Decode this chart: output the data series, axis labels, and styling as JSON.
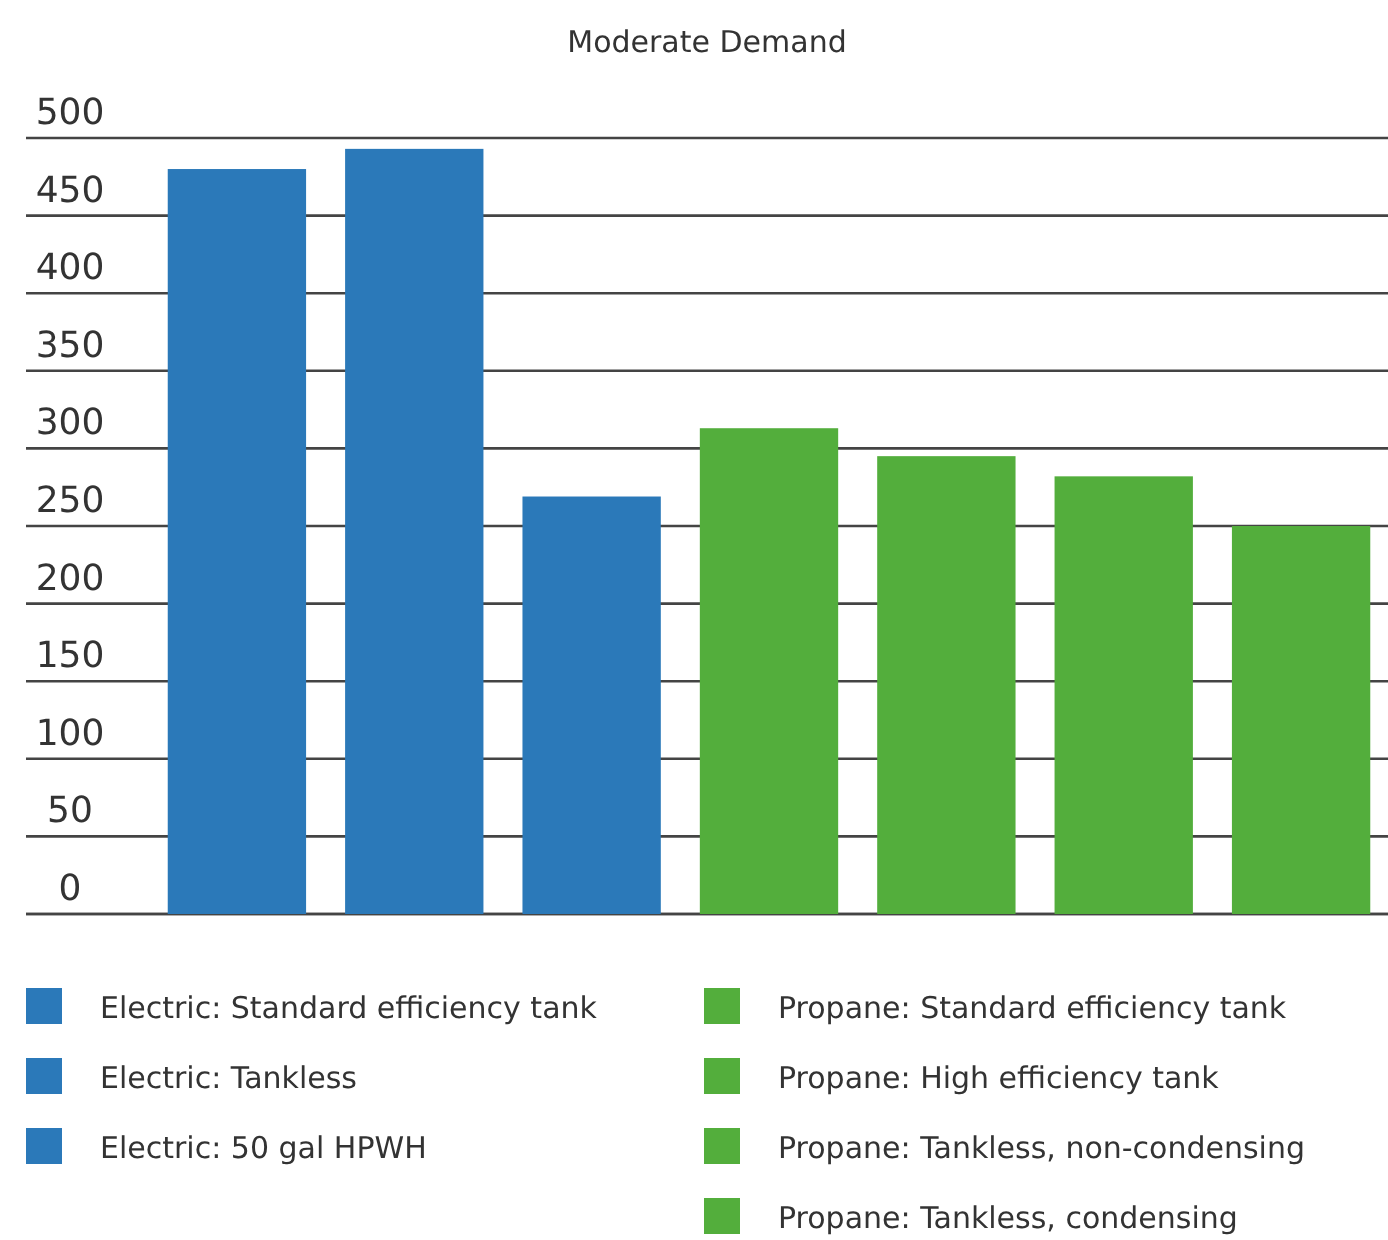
{
  "chart_data": {
    "type": "bar",
    "title": "Moderate Demand",
    "categories": [
      null,
      null,
      null,
      null,
      null,
      null,
      null
    ],
    "stacked": true,
    "series": [
      {
        "name": "Electric: Standard efficiency tank",
        "color": "#2b79b9",
        "values": [
          480,
          null,
          null,
          null,
          null,
          null,
          null
        ]
      },
      {
        "name": "Electric: Tankless",
        "color": "#2b79b9",
        "values": [
          null,
          493,
          null,
          null,
          null,
          null,
          null
        ]
      },
      {
        "name": "Electric: 50 gal HPWH",
        "color": "#2b79b9",
        "values": [
          null,
          null,
          269,
          null,
          null,
          null,
          null
        ]
      },
      {
        "name": "Propane: Standard efficiency tank",
        "color": "#53ae3c",
        "values": [
          null,
          null,
          null,
          313,
          null,
          null,
          null
        ]
      },
      {
        "name": "Propane: High efficiency tank",
        "color": "#53ae3c",
        "values": [
          null,
          null,
          null,
          null,
          295,
          null,
          null
        ]
      },
      {
        "name": "Propane: Tankless, non-condensing",
        "color": "#53ae3c",
        "values": [
          null,
          null,
          null,
          null,
          null,
          282,
          null
        ]
      },
      {
        "name": "Propane: Tankless, condensing",
        "color": "#53ae3c",
        "values": [
          null,
          null,
          null,
          null,
          null,
          null,
          250
        ]
      }
    ],
    "ylim": [
      0,
      500
    ],
    "yticks": [
      0,
      50,
      100,
      150,
      200,
      250,
      300,
      350,
      400,
      450,
      500
    ],
    "grid": "y",
    "legend": "bottom"
  }
}
